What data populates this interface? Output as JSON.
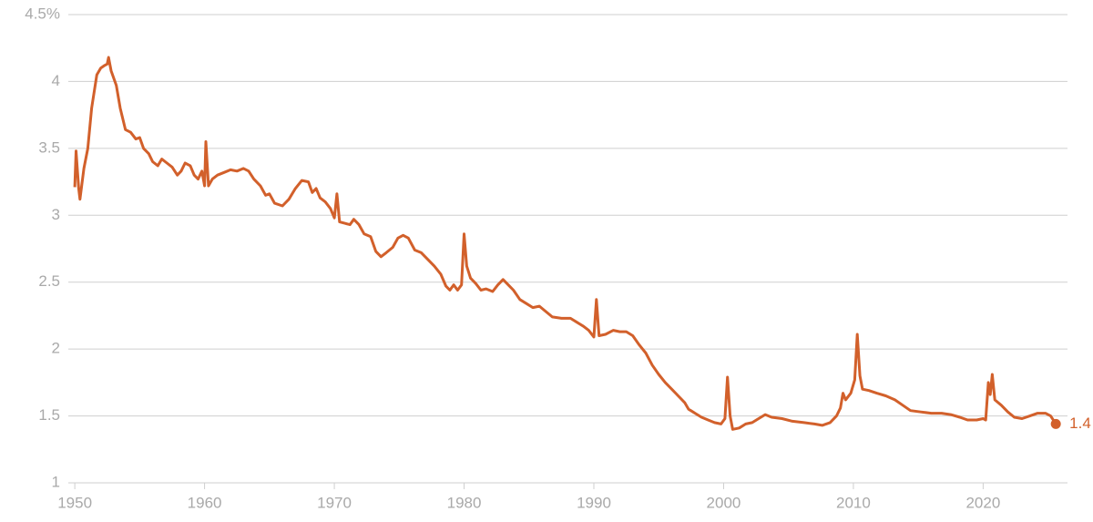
{
  "chart_data": {
    "type": "line",
    "x": [
      1950.0,
      1950.1,
      1950.3,
      1950.4,
      1950.7,
      1951.0,
      1951.3,
      1951.7,
      1952.0,
      1952.3,
      1952.5,
      1952.6,
      1952.8,
      1953.2,
      1953.5,
      1953.9,
      1954.3,
      1954.7,
      1955.0,
      1955.3,
      1955.7,
      1956.0,
      1956.4,
      1956.7,
      1957.1,
      1957.5,
      1957.9,
      1958.2,
      1958.5,
      1958.9,
      1959.2,
      1959.5,
      1959.8,
      1960.0,
      1960.1,
      1960.3,
      1960.6,
      1961.0,
      1961.5,
      1962.0,
      1962.5,
      1963.0,
      1963.4,
      1963.8,
      1964.3,
      1964.7,
      1965.0,
      1965.4,
      1966.0,
      1966.5,
      1967.0,
      1967.5,
      1968.0,
      1968.3,
      1968.6,
      1968.9,
      1969.3,
      1969.7,
      1970.0,
      1970.2,
      1970.4,
      1970.8,
      1971.2,
      1971.5,
      1971.9,
      1972.3,
      1972.8,
      1973.2,
      1973.6,
      1974.0,
      1974.5,
      1974.9,
      1975.3,
      1975.7,
      1976.2,
      1976.7,
      1977.2,
      1977.7,
      1978.2,
      1978.6,
      1978.9,
      1979.2,
      1979.5,
      1979.8,
      1980.0,
      1980.2,
      1980.5,
      1980.9,
      1981.3,
      1981.7,
      1982.2,
      1982.6,
      1983.0,
      1983.4,
      1983.8,
      1984.3,
      1984.8,
      1985.3,
      1985.8,
      1986.3,
      1986.8,
      1987.5,
      1988.2,
      1988.7,
      1989.2,
      1989.6,
      1990.0,
      1990.2,
      1990.4,
      1990.9,
      1991.5,
      1992.0,
      1992.5,
      1993.0,
      1993.5,
      1994.0,
      1994.5,
      1995.0,
      1995.5,
      1996.0,
      1996.6,
      1997.0,
      1997.3,
      1997.8,
      1998.3,
      1998.8,
      1999.3,
      1999.8,
      2000.1,
      2000.3,
      2000.5,
      2000.7,
      2001.2,
      2001.7,
      2002.2,
      2002.7,
      2003.2,
      2003.7,
      2004.5,
      2005.3,
      2006.2,
      2007.0,
      2007.6,
      2008.2,
      2008.7,
      2009.0,
      2009.2,
      2009.4,
      2009.8,
      2010.1,
      2010.3,
      2010.5,
      2010.7,
      2011.2,
      2011.8,
      2012.5,
      2013.2,
      2013.8,
      2014.4,
      2015.2,
      2016.0,
      2016.8,
      2017.5,
      2018.2,
      2018.8,
      2019.5,
      2020.0,
      2020.2,
      2020.4,
      2020.55,
      2020.7,
      2020.9,
      2021.4,
      2021.9,
      2022.4,
      2023.0,
      2023.6,
      2024.2,
      2024.8,
      2025.2,
      2025.6
    ],
    "series": [
      {
        "color": "#d2602b",
        "values": [
          3.21,
          3.48,
          3.2,
          3.12,
          3.35,
          3.5,
          3.8,
          4.05,
          4.1,
          4.12,
          4.13,
          4.18,
          4.08,
          3.97,
          3.8,
          3.64,
          3.62,
          3.57,
          3.58,
          3.5,
          3.46,
          3.4,
          3.37,
          3.42,
          3.39,
          3.36,
          3.3,
          3.33,
          3.39,
          3.37,
          3.3,
          3.27,
          3.33,
          3.22,
          3.55,
          3.22,
          3.27,
          3.3,
          3.32,
          3.34,
          3.33,
          3.35,
          3.33,
          3.27,
          3.22,
          3.15,
          3.16,
          3.09,
          3.07,
          3.12,
          3.2,
          3.26,
          3.25,
          3.17,
          3.2,
          3.13,
          3.1,
          3.05,
          2.98,
          3.16,
          2.95,
          2.94,
          2.93,
          2.97,
          2.93,
          2.86,
          2.84,
          2.73,
          2.69,
          2.72,
          2.76,
          2.83,
          2.85,
          2.83,
          2.74,
          2.72,
          2.67,
          2.62,
          2.56,
          2.47,
          2.44,
          2.48,
          2.44,
          2.48,
          2.86,
          2.62,
          2.53,
          2.49,
          2.44,
          2.45,
          2.43,
          2.48,
          2.52,
          2.48,
          2.44,
          2.37,
          2.34,
          2.31,
          2.32,
          2.28,
          2.24,
          2.23,
          2.23,
          2.2,
          2.17,
          2.14,
          2.09,
          2.37,
          2.1,
          2.11,
          2.14,
          2.13,
          2.13,
          2.1,
          2.03,
          1.97,
          1.88,
          1.81,
          1.75,
          1.7,
          1.64,
          1.6,
          1.55,
          1.52,
          1.49,
          1.47,
          1.45,
          1.44,
          1.48,
          1.79,
          1.5,
          1.4,
          1.41,
          1.44,
          1.45,
          1.48,
          1.51,
          1.49,
          1.48,
          1.46,
          1.45,
          1.44,
          1.43,
          1.45,
          1.5,
          1.56,
          1.67,
          1.62,
          1.67,
          1.77,
          2.11,
          1.8,
          1.7,
          1.69,
          1.67,
          1.65,
          1.62,
          1.58,
          1.54,
          1.53,
          1.52,
          1.52,
          1.51,
          1.49,
          1.47,
          1.47,
          1.48,
          1.47,
          1.75,
          1.66,
          1.81,
          1.62,
          1.58,
          1.53,
          1.49,
          1.48,
          1.5,
          1.52,
          1.52,
          1.5,
          1.44
        ]
      }
    ],
    "end_label": "1.4",
    "xlim": [
      1949.5,
      2026.5
    ],
    "xticks": [
      1950,
      1960,
      1970,
      1980,
      1990,
      2000,
      2010,
      2020
    ],
    "ylim": [
      1,
      4.5
    ],
    "yticks": [
      1,
      1.5,
      2,
      2.5,
      3,
      3.5,
      4,
      {
        "value": 4.5,
        "label": "4.5%"
      }
    ],
    "grid": true
  }
}
